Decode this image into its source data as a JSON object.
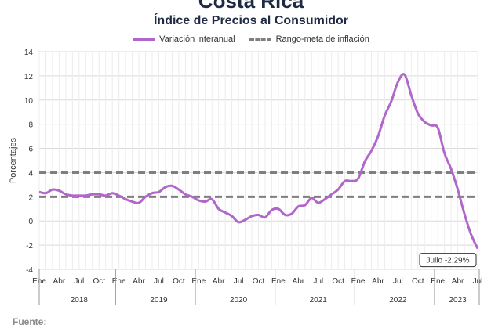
{
  "header": {
    "title": "Costa Rica",
    "subtitle": "Índice de Precios al Consumidor"
  },
  "footer": {
    "source_label": "Fuente:"
  },
  "colors": {
    "series": "#b067c9",
    "target": "#7f7f7f",
    "negative_tick": "#e02020",
    "text": "#1f2a44"
  },
  "chart_data": {
    "type": "line",
    "title": "Índice de Precios al Consumidor",
    "ylabel": "Porcentajes",
    "xlabel": "",
    "ylim": [
      -4,
      14
    ],
    "yticks": [
      14,
      12,
      10,
      8,
      6,
      4,
      2,
      0,
      -2,
      -4
    ],
    "grid": true,
    "legend_position": "top-center",
    "month_ticks": [
      "Ene",
      "Abr",
      "Jul",
      "Oct"
    ],
    "years": [
      "2018",
      "2019",
      "2020",
      "2021",
      "2022",
      "2023"
    ],
    "last_year_month_ticks": [
      "Ene",
      "Abr",
      "Jul"
    ],
    "series": [
      {
        "name": "Variación interanual",
        "start": "2018-01",
        "values": [
          2.4,
          2.3,
          2.6,
          2.5,
          2.2,
          2.1,
          2.1,
          2.1,
          2.2,
          2.2,
          2.1,
          2.3,
          2.1,
          1.8,
          1.6,
          1.5,
          2.0,
          2.3,
          2.4,
          2.8,
          2.9,
          2.6,
          2.2,
          2.0,
          1.7,
          1.6,
          1.8,
          1.0,
          0.7,
          0.4,
          -0.1,
          0.1,
          0.4,
          0.5,
          0.3,
          0.9,
          1.0,
          0.5,
          0.6,
          1.2,
          1.3,
          1.9,
          1.5,
          1.8,
          2.2,
          2.6,
          3.3,
          3.3,
          3.5,
          4.9,
          5.8,
          7.0,
          8.7,
          9.9,
          11.5,
          12.1,
          10.4,
          8.9,
          8.2,
          7.9,
          7.7,
          5.6,
          4.3,
          2.6,
          0.6,
          -1.1,
          -2.29
        ]
      },
      {
        "name": "Rango-meta de inflación",
        "style": "dashed",
        "values": [
          2,
          4
        ]
      }
    ],
    "annotations": [
      {
        "text": "Julio -2.29%",
        "x": "2023-07",
        "y": -2.29
      }
    ]
  }
}
